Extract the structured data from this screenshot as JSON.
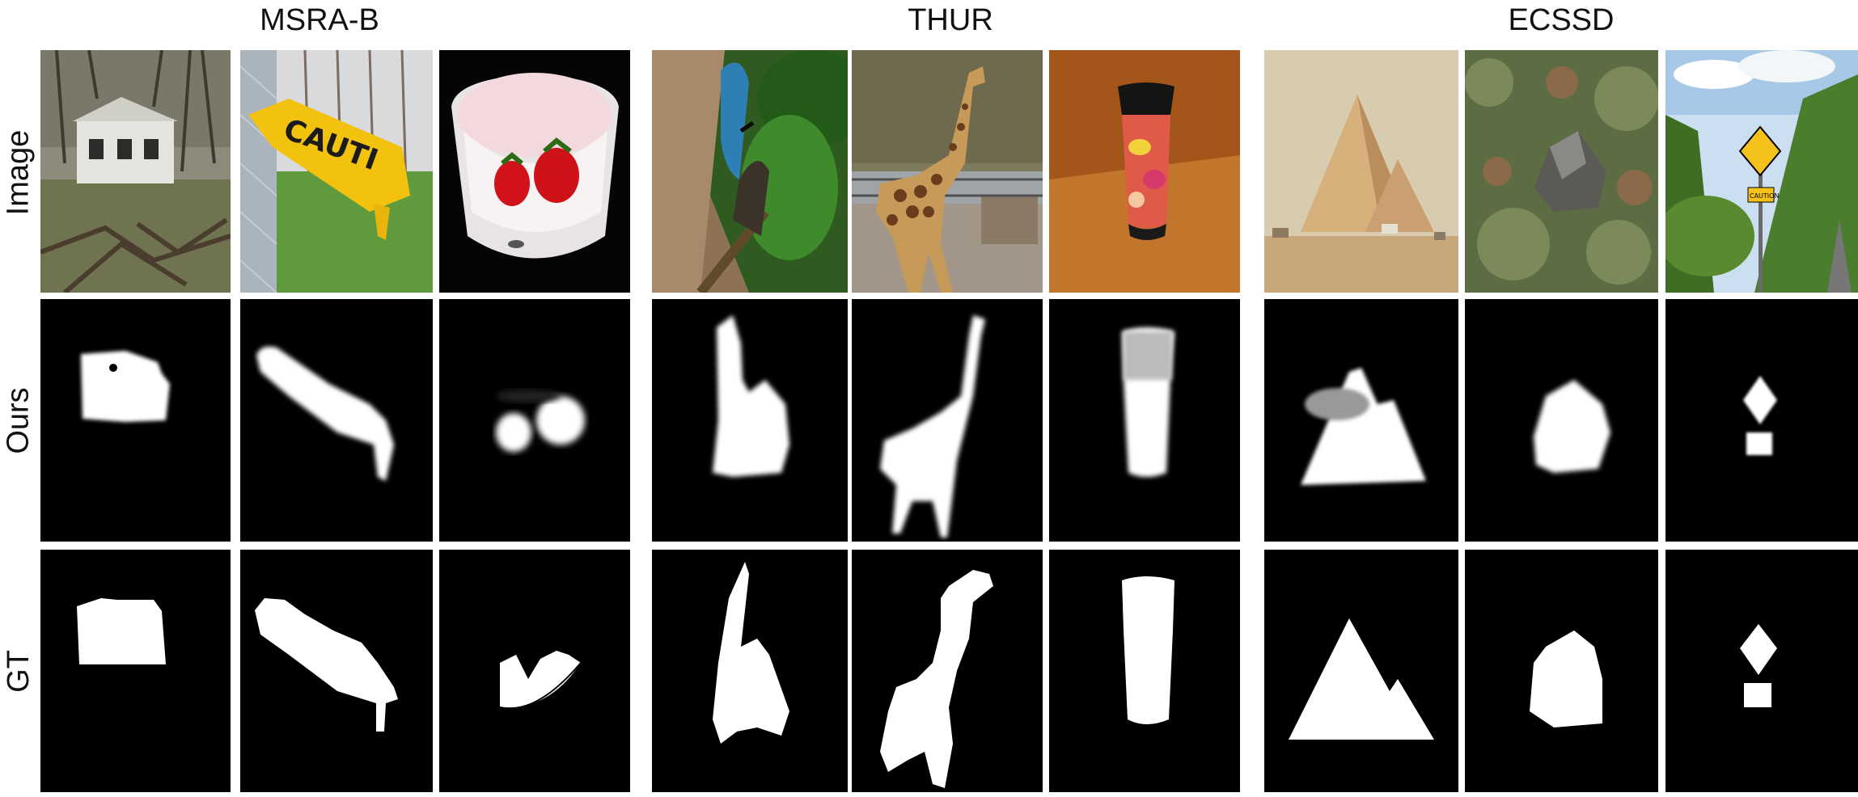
{
  "figure": {
    "groups": [
      {
        "name": "MSRA-B"
      },
      {
        "name": "THUR"
      },
      {
        "name": "ECSSD"
      }
    ],
    "rows": [
      {
        "label": "Image"
      },
      {
        "label": "Ours"
      },
      {
        "label": "GT"
      }
    ],
    "images": [
      {
        "id": "house"
      },
      {
        "id": "caution-tape",
        "sign_text": "CAUTI"
      },
      {
        "id": "strawberries-bowl"
      },
      {
        "id": "butterfly"
      },
      {
        "id": "giraffe"
      },
      {
        "id": "thermos-cup"
      },
      {
        "id": "pyramids"
      },
      {
        "id": "rock"
      },
      {
        "id": "road-sign",
        "sign_text": "CAUTION"
      }
    ]
  }
}
